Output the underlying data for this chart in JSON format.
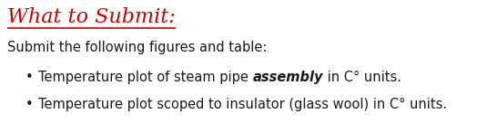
{
  "title": "What to Submit:",
  "title_color": "#CC0000",
  "title_fontsize": 16,
  "body_color": "#1a1a1a",
  "background_color": "#ffffff",
  "subtitle": "Submit the following figures and table:",
  "subtitle_fontsize": 10.5,
  "bullet1_plain": "Temperature plot of steam pipe ",
  "bullet1_bold_italic": "assembly",
  "bullet1_end": " in C° units.",
  "bullet2": "Temperature plot scoped to insulator (glass wool) in C° units.",
  "bullet_fontsize": 10.5,
  "bullet_color": "#1a1a1a",
  "figwidth": 5.35,
  "figheight": 1.47,
  "dpi": 100
}
